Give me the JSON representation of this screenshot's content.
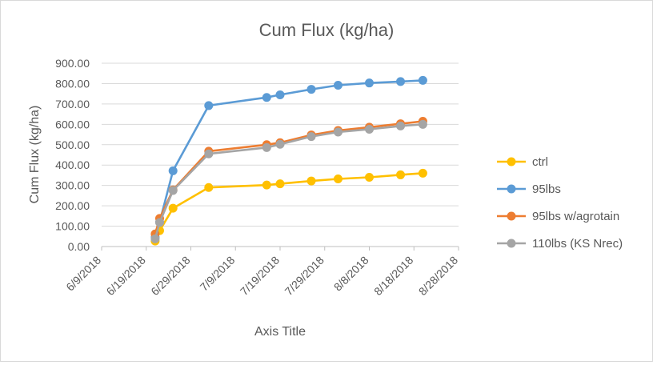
{
  "chart_data": {
    "type": "line",
    "title": "Cum Flux (kg/ha)",
    "xlabel": "Axis Title",
    "ylabel": "Cum Flux (kg/ha)",
    "xlim": [
      "6/9/2018",
      "8/28/2018"
    ],
    "xticks": [
      "6/9/2018",
      "6/19/2018",
      "6/29/2018",
      "7/9/2018",
      "7/19/2018",
      "7/29/2018",
      "8/8/2018",
      "8/18/2018",
      "8/28/2018"
    ],
    "ylim": [
      0,
      900
    ],
    "yticks": [
      "0.00",
      "100.00",
      "200.00",
      "300.00",
      "400.00",
      "500.00",
      "600.00",
      "700.00",
      "800.00",
      "900.00"
    ],
    "grid": "horizontal",
    "legend": "right",
    "series": [
      {
        "name": "ctrl",
        "color": "#FFC000",
        "points": [
          [
            "6/21/2018",
            27
          ],
          [
            "6/22/2018",
            78
          ],
          [
            "6/25/2018",
            188
          ],
          [
            "7/3/2018",
            290
          ],
          [
            "7/16/2018",
            302
          ],
          [
            "7/19/2018",
            308
          ],
          [
            "7/26/2018",
            322
          ],
          [
            "8/1/2018",
            332
          ],
          [
            "8/8/2018",
            340
          ],
          [
            "8/15/2018",
            352
          ],
          [
            "8/20/2018",
            360
          ]
        ]
      },
      {
        "name": "95lbs",
        "color": "#5B9BD5",
        "points": [
          [
            "6/21/2018",
            45
          ],
          [
            "6/22/2018",
            120
          ],
          [
            "6/25/2018",
            372
          ],
          [
            "7/3/2018",
            692
          ],
          [
            "7/16/2018",
            732
          ],
          [
            "7/19/2018",
            745
          ],
          [
            "7/26/2018",
            772
          ],
          [
            "8/1/2018",
            792
          ],
          [
            "8/8/2018",
            803
          ],
          [
            "8/15/2018",
            810
          ],
          [
            "8/20/2018",
            816
          ]
        ]
      },
      {
        "name": "95lbs w/agrotain",
        "color": "#ED7D31",
        "points": [
          [
            "6/21/2018",
            62
          ],
          [
            "6/22/2018",
            138
          ],
          [
            "6/25/2018",
            278
          ],
          [
            "7/3/2018",
            468
          ],
          [
            "7/16/2018",
            500
          ],
          [
            "7/19/2018",
            510
          ],
          [
            "7/26/2018",
            548
          ],
          [
            "8/1/2018",
            570
          ],
          [
            "8/8/2018",
            586
          ],
          [
            "8/15/2018",
            603
          ],
          [
            "8/20/2018",
            615
          ]
        ]
      },
      {
        "name": "110lbs (KS Nrec)",
        "color": "#A5A5A5",
        "points": [
          [
            "6/21/2018",
            38
          ],
          [
            "6/22/2018",
            118
          ],
          [
            "6/25/2018",
            275
          ],
          [
            "7/3/2018",
            455
          ],
          [
            "7/16/2018",
            486
          ],
          [
            "7/19/2018",
            502
          ],
          [
            "7/26/2018",
            540
          ],
          [
            "8/1/2018",
            562
          ],
          [
            "8/8/2018",
            576
          ],
          [
            "8/15/2018",
            592
          ],
          [
            "8/20/2018",
            600
          ]
        ]
      }
    ]
  }
}
